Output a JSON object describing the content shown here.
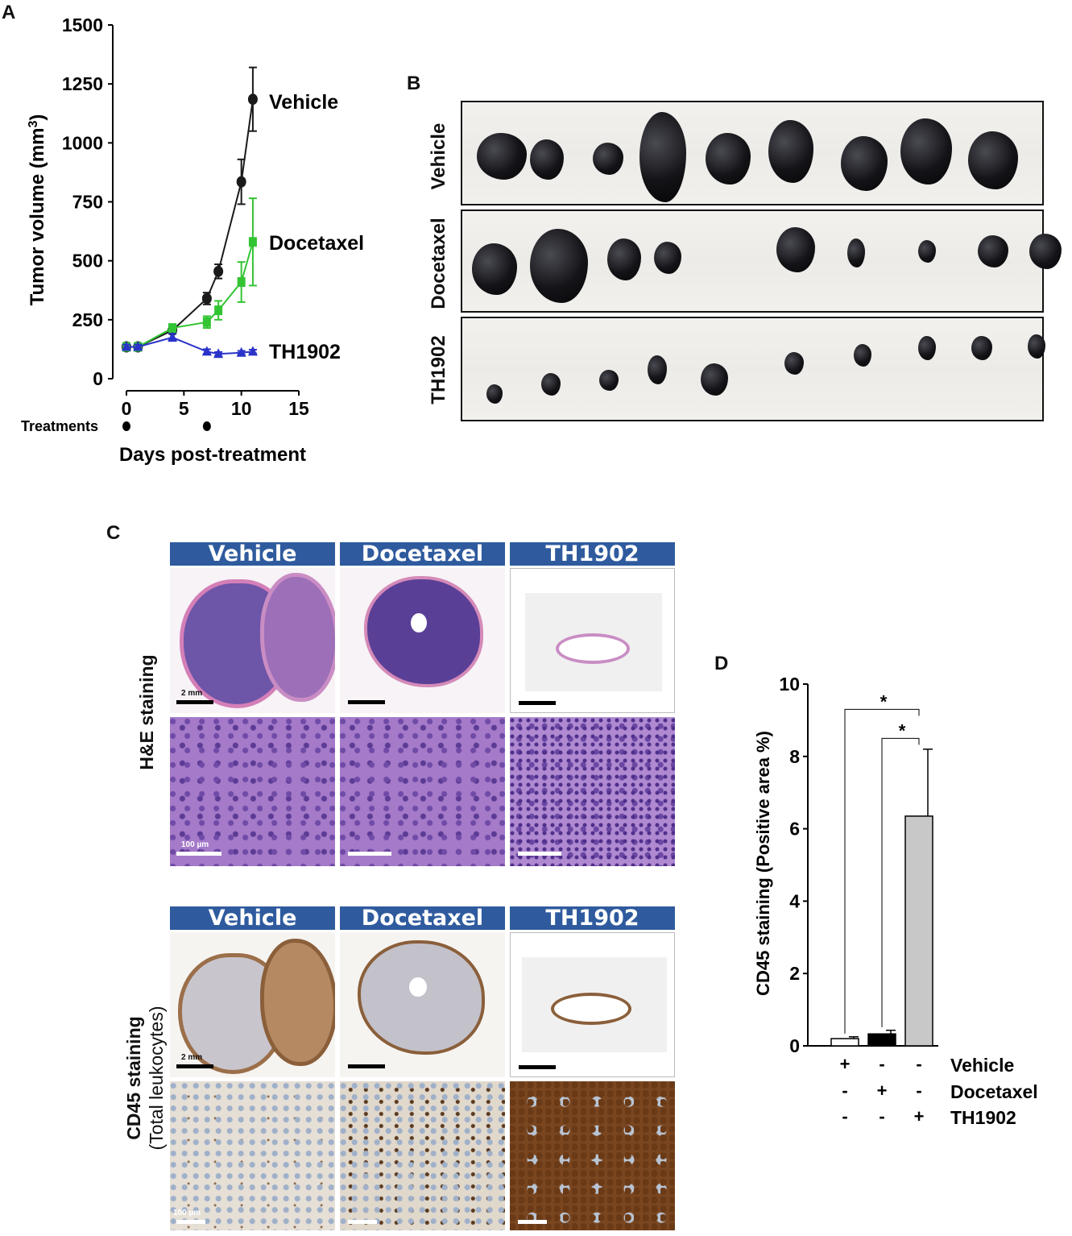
{
  "panels": {
    "a": "A",
    "b": "B",
    "c": "C",
    "d": "D"
  },
  "panel_a": {
    "treatments_label": "Treatments",
    "treatment_days": [
      0,
      7
    ],
    "series_labels": {
      "vehicle": "Vehicle",
      "docetaxel": "Docetaxel",
      "th1902": "TH1902"
    }
  },
  "panel_b": {
    "rows": [
      "Vehicle",
      "Docetaxel",
      "TH1902"
    ]
  },
  "panel_c": {
    "headers": [
      "Vehicle",
      "Docetaxel",
      "TH1902"
    ],
    "he_label": "H&E staining",
    "cd45_label_1": "CD45 staining",
    "cd45_label_2": "(Total leukocytes)",
    "scale_2mm": "2 mm",
    "scale_100um": "100 µm"
  },
  "chart_data": [
    {
      "type": "line",
      "title": "",
      "xlabel": "Days post-treatment",
      "ylabel": "Tumor volume (mm3)",
      "xlim": [
        0,
        15
      ],
      "ylim": [
        0,
        1500
      ],
      "xticks": [
        0,
        5,
        10,
        15
      ],
      "yticks": [
        0,
        250,
        500,
        750,
        1000,
        1250,
        1500
      ],
      "series": [
        {
          "name": "Vehicle",
          "color": "#1a1a1a",
          "marker": "circle",
          "x": [
            0,
            1,
            4,
            7,
            8,
            10,
            11
          ],
          "y": [
            135,
            135,
            205,
            340,
            455,
            835,
            1185
          ],
          "err": [
            15,
            15,
            15,
            25,
            30,
            95,
            135
          ]
        },
        {
          "name": "Docetaxel",
          "color": "#33c433",
          "marker": "square",
          "x": [
            0,
            1,
            4,
            7,
            8,
            10,
            11
          ],
          "y": [
            135,
            135,
            215,
            240,
            290,
            410,
            580
          ],
          "err": [
            15,
            15,
            15,
            25,
            40,
            85,
            185
          ]
        },
        {
          "name": "TH1902",
          "color": "#2a33c9",
          "marker": "triangle",
          "x": [
            0,
            1,
            4,
            7,
            8,
            10,
            11
          ],
          "y": [
            135,
            135,
            175,
            115,
            105,
            110,
            115
          ],
          "err": [
            10,
            10,
            15,
            10,
            8,
            8,
            8
          ]
        }
      ]
    },
    {
      "type": "bar",
      "title": "",
      "ylabel": "CD45 staining (Positive area %)",
      "ylim": [
        0,
        10
      ],
      "yticks": [
        0,
        2,
        4,
        6,
        8,
        10
      ],
      "categories": [
        "Vehicle",
        "Docetaxel",
        "TH1902"
      ],
      "values": [
        0.2,
        0.33,
        6.35
      ],
      "errors": [
        0.05,
        0.1,
        1.85
      ],
      "colors": [
        "#ffffff",
        "#000000",
        "#c8c8c8"
      ],
      "significance": [
        {
          "from": 0,
          "to": 2,
          "label": "*"
        },
        {
          "from": 1,
          "to": 2,
          "label": "*"
        }
      ],
      "legend_rows": [
        {
          "label": "Vehicle",
          "signs": [
            "+",
            "-",
            "-"
          ]
        },
        {
          "label": "Docetaxel",
          "signs": [
            "-",
            "+",
            "-"
          ]
        },
        {
          "label": "TH1902",
          "signs": [
            "-",
            "-",
            "+"
          ]
        }
      ]
    }
  ]
}
